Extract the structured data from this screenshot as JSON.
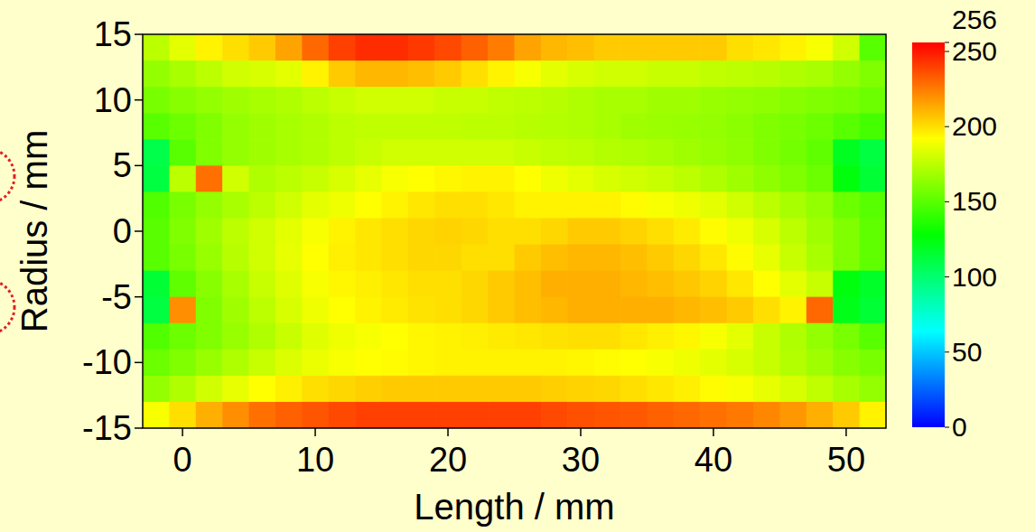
{
  "chart_data": {
    "type": "heatmap",
    "x_label": "Length / mm",
    "y_label": "Radius / mm",
    "xlim": [
      -3,
      53
    ],
    "ylim": [
      -15,
      15
    ],
    "xticks": [
      0,
      10,
      20,
      30,
      40,
      50
    ],
    "yticks": [
      -15,
      -10,
      -5,
      0,
      5,
      10,
      15
    ],
    "x": [
      -2,
      0,
      2,
      4,
      6,
      8,
      10,
      12,
      14,
      16,
      18,
      20,
      22,
      24,
      26,
      28,
      30,
      32,
      34,
      36,
      38,
      40,
      42,
      44,
      46,
      48,
      50,
      52
    ],
    "y": [
      14,
      12,
      10,
      8,
      6,
      4,
      2,
      0,
      -2,
      -4,
      -6,
      -8,
      -10,
      -12,
      -14
    ],
    "cells": [
      [
        175,
        185,
        195,
        200,
        205,
        215,
        230,
        240,
        245,
        245,
        242,
        238,
        232,
        225,
        215,
        210,
        208,
        205,
        205,
        205,
        205,
        205,
        200,
        198,
        195,
        190,
        180,
        150
      ],
      [
        165,
        170,
        175,
        180,
        182,
        185,
        195,
        205,
        210,
        210,
        208,
        205,
        200,
        195,
        190,
        185,
        182,
        180,
        180,
        178,
        178,
        176,
        175,
        174,
        172,
        170,
        165,
        160
      ],
      [
        158,
        162,
        165,
        168,
        170,
        172,
        175,
        178,
        180,
        180,
        180,
        178,
        178,
        176,
        175,
        174,
        172,
        170,
        170,
        168,
        168,
        166,
        165,
        164,
        162,
        160,
        158,
        155
      ],
      [
        150,
        155,
        160,
        165,
        168,
        170,
        172,
        175,
        176,
        176,
        176,
        176,
        175,
        175,
        174,
        173,
        172,
        170,
        168,
        167,
        166,
        165,
        163,
        160,
        158,
        155,
        150,
        145
      ],
      [
        110,
        150,
        160,
        165,
        168,
        170,
        172,
        175,
        178,
        180,
        180,
        180,
        180,
        180,
        178,
        176,
        175,
        173,
        172,
        170,
        168,
        166,
        164,
        160,
        157,
        152,
        120,
        112
      ],
      [
        112,
        175,
        228,
        180,
        172,
        175,
        178,
        182,
        186,
        190,
        192,
        194,
        195,
        195,
        192,
        188,
        185,
        182,
        180,
        178,
        175,
        172,
        168,
        164,
        160,
        155,
        125,
        115
      ],
      [
        148,
        158,
        165,
        170,
        175,
        180,
        185,
        188,
        192,
        195,
        198,
        200,
        200,
        198,
        195,
        195,
        195,
        195,
        193,
        190,
        188,
        185,
        180,
        175,
        170,
        165,
        155,
        150
      ],
      [
        150,
        160,
        168,
        175,
        180,
        185,
        190,
        195,
        198,
        200,
        202,
        203,
        202,
        200,
        200,
        202,
        205,
        205,
        203,
        200,
        197,
        193,
        188,
        182,
        175,
        168,
        160,
        152
      ],
      [
        150,
        158,
        166,
        174,
        180,
        186,
        192,
        196,
        198,
        200,
        202,
        202,
        200,
        200,
        205,
        208,
        210,
        210,
        208,
        205,
        202,
        198,
        193,
        186,
        178,
        170,
        160,
        152
      ],
      [
        115,
        152,
        162,
        170,
        178,
        184,
        190,
        194,
        196,
        198,
        200,
        200,
        202,
        205,
        208,
        212,
        212,
        212,
        210,
        208,
        206,
        203,
        198,
        192,
        185,
        178,
        125,
        118
      ],
      [
        112,
        220,
        160,
        168,
        175,
        182,
        188,
        192,
        195,
        197,
        199,
        200,
        202,
        205,
        208,
        210,
        212,
        212,
        212,
        212,
        210,
        208,
        205,
        200,
        195,
        230,
        122,
        115
      ],
      [
        148,
        155,
        160,
        166,
        172,
        178,
        184,
        188,
        190,
        192,
        194,
        195,
        196,
        197,
        198,
        199,
        200,
        200,
        198,
        196,
        194,
        190,
        185,
        178,
        172,
        165,
        158,
        150
      ],
      [
        155,
        160,
        166,
        172,
        178,
        183,
        187,
        190,
        192,
        193,
        194,
        195,
        195,
        195,
        195,
        195,
        194,
        193,
        192,
        190,
        188,
        185,
        182,
        178,
        173,
        168,
        162,
        158
      ],
      [
        165,
        172,
        180,
        186,
        192,
        196,
        200,
        202,
        204,
        205,
        205,
        205,
        205,
        205,
        205,
        204,
        203,
        202,
        200,
        198,
        196,
        193,
        190,
        186,
        182,
        176,
        170,
        165
      ],
      [
        190,
        200,
        212,
        220,
        228,
        232,
        235,
        238,
        240,
        240,
        240,
        240,
        240,
        240,
        240,
        238,
        236,
        235,
        234,
        232,
        230,
        228,
        226,
        222,
        218,
        212,
        205,
        195
      ]
    ],
    "colorbar": {
      "range": [
        0,
        256
      ],
      "ticks": [
        0,
        50,
        100,
        150,
        200,
        250,
        256
      ]
    }
  }
}
